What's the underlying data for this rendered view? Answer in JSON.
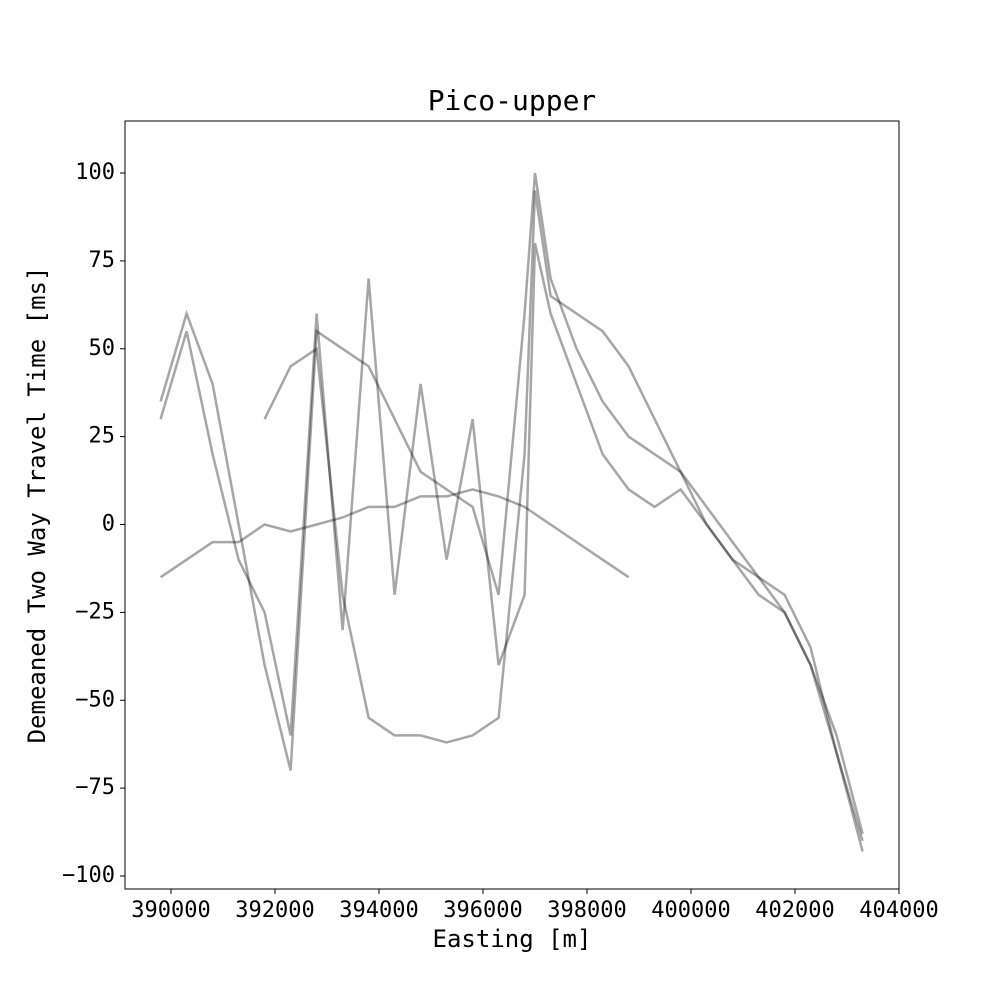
{
  "chart_data": {
    "type": "line",
    "title": "Pico-upper",
    "x_label": "Easting [m]",
    "y_label": "Demeaned Two Way Travel Time [ms]",
    "x": [
      389800,
      390300,
      390800,
      391300,
      391800,
      392300,
      392800,
      393300,
      393800,
      394300,
      394800,
      395300,
      395800,
      396300,
      396800,
      397000,
      397300,
      397800,
      398300,
      398800,
      399300,
      399800,
      400300,
      400800,
      401300,
      401800,
      402300,
      402800,
      403300
    ],
    "series": [
      {
        "color": "#000000",
        "values": [
          35,
          60,
          40,
          0,
          -40,
          -70,
          55,
          50,
          45,
          30,
          15,
          10,
          5,
          -20,
          60,
          100,
          70,
          50,
          35,
          25,
          20,
          15,
          0,
          -10,
          -15,
          -20,
          -35,
          -65,
          -93
        ]
      },
      {
        "color": "#000000",
        "values": [
          -15,
          -10,
          -5,
          -5,
          0,
          -2,
          0,
          2,
          5,
          5,
          8,
          8,
          10,
          8,
          5,
          3,
          0,
          -5,
          -10,
          -15,
          null,
          null,
          null,
          null,
          null,
          null,
          null,
          null,
          null
        ]
      },
      {
        "color": "#000000",
        "values": [
          null,
          null,
          null,
          null,
          30,
          45,
          50,
          -20,
          -55,
          -60,
          -60,
          -62,
          -60,
          -55,
          20,
          95,
          65,
          60,
          55,
          45,
          30,
          15,
          5,
          -5,
          -15,
          -25,
          -40,
          -65,
          -90
        ]
      },
      {
        "color": "#000000",
        "values": [
          30,
          55,
          20,
          -10,
          -25,
          -60,
          60,
          -30,
          70,
          -20,
          40,
          -10,
          30,
          -40,
          -20,
          80,
          60,
          40,
          20,
          10,
          5,
          10,
          0,
          -10,
          -20,
          -25,
          -40,
          -60,
          -88
        ]
      }
    ],
    "alpha": 0.35,
    "xlim": [
      389115,
      404000
    ],
    "ylim": [
      -103.7,
      114.8
    ],
    "xticks": [
      390000,
      392000,
      394000,
      396000,
      398000,
      400000,
      402000,
      404000
    ],
    "yticks": [
      {
        "value": -100,
        "label": "−100"
      },
      {
        "value": -75,
        "label": "−75"
      },
      {
        "value": -50,
        "label": "−50"
      },
      {
        "value": -25,
        "label": "−25"
      },
      0,
      25,
      50,
      75,
      100
    ]
  }
}
